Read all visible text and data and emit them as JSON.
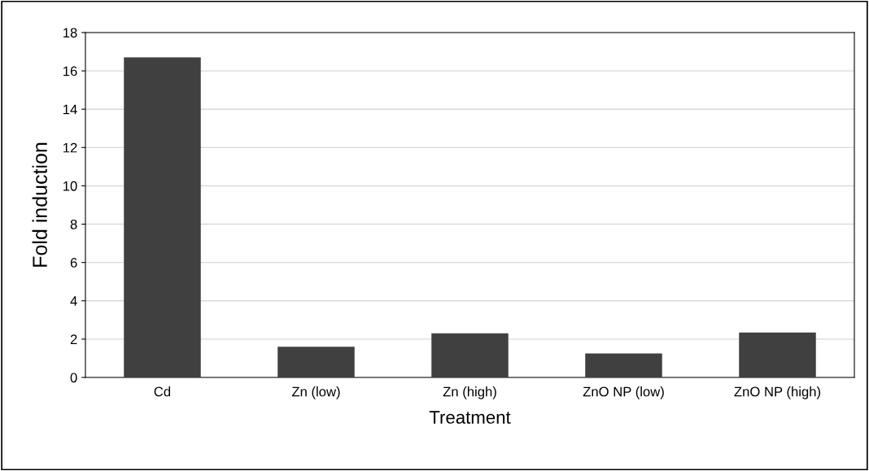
{
  "chart_data": {
    "type": "bar",
    "xlabel": "Treatment",
    "ylabel": "Fold induction",
    "categories": [
      "Cd",
      "Zn (low)",
      "Zn (high)",
      "ZnO NP (low)",
      "ZnO NP (high)"
    ],
    "values": [
      16.7,
      1.6,
      2.3,
      1.25,
      2.35
    ],
    "color": "#404040",
    "ylim": [
      0,
      18
    ],
    "yticks": [
      0,
      2,
      4,
      6,
      8,
      10,
      12,
      14,
      16,
      18
    ],
    "grid": "y",
    "legend": false
  }
}
